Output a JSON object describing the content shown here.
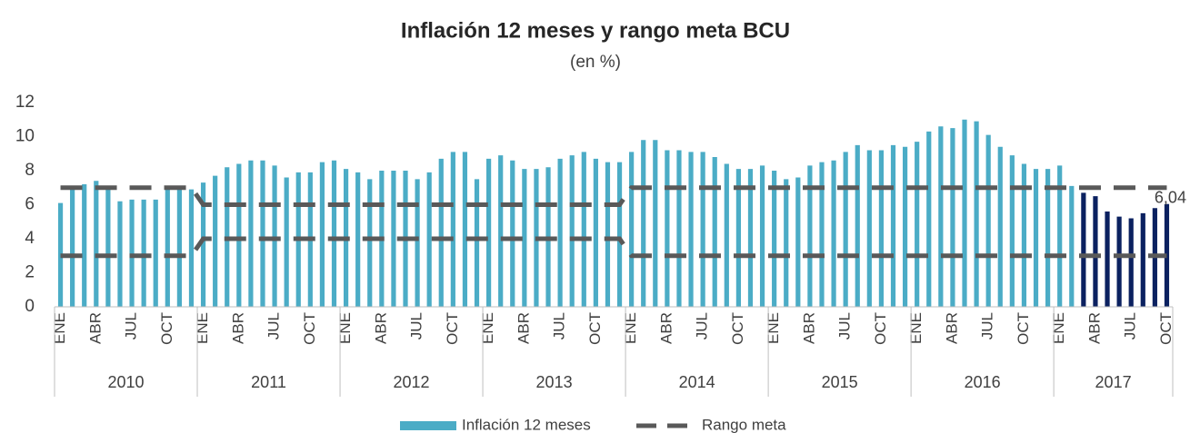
{
  "chart_data": {
    "type": "bar",
    "title": "Inflación 12 meses y rango meta BCU",
    "subtitle": "(en %)",
    "categories": [
      "ENE",
      null,
      null,
      "ABR",
      null,
      null,
      "JUL",
      null,
      null,
      "OCT",
      null,
      null,
      "ENE",
      null,
      null,
      "ABR",
      null,
      null,
      "JUL",
      null,
      null,
      "OCT",
      null,
      null,
      "ENE",
      null,
      null,
      "ABR",
      null,
      null,
      "JUL",
      null,
      null,
      "OCT",
      null,
      null,
      "ENE",
      null,
      null,
      "ABR",
      null,
      null,
      "JUL",
      null,
      null,
      "OCT",
      null,
      null,
      "ENE",
      null,
      null,
      "ABR",
      null,
      null,
      "JUL",
      null,
      null,
      "OCT",
      null,
      null,
      "ENE",
      null,
      null,
      "ABR",
      null,
      null,
      "JUL",
      null,
      null,
      "OCT",
      null,
      null,
      "ENE",
      null,
      null,
      "ABR",
      null,
      null,
      "JUL",
      null,
      null,
      "OCT",
      null,
      null,
      "ENE",
      null,
      null,
      "ABR",
      null,
      null,
      "JUL",
      null,
      null,
      "OCT"
    ],
    "years": [
      "2010",
      "2011",
      "2012",
      "2013",
      "2014",
      "2015",
      "2016",
      "2017"
    ],
    "series": [
      {
        "name": "Inflación 12 meses",
        "color": "#4bacc6",
        "values": [
          6.1,
          7.1,
          7.2,
          7.4,
          7.0,
          6.2,
          6.3,
          6.3,
          6.3,
          7.0,
          7.0,
          6.9,
          7.3,
          7.7,
          8.2,
          8.4,
          8.6,
          8.6,
          8.3,
          7.6,
          7.9,
          7.9,
          8.5,
          8.6,
          8.1,
          7.9,
          7.5,
          8.0,
          8.0,
          8.0,
          7.5,
          7.9,
          8.7,
          9.1,
          9.1,
          7.5,
          8.7,
          8.9,
          8.6,
          8.1,
          8.1,
          8.2,
          8.7,
          8.9,
          9.1,
          8.7,
          8.5,
          8.5,
          9.1,
          9.8,
          9.8,
          9.2,
          9.2,
          9.1,
          9.1,
          8.8,
          8.4,
          8.1,
          8.1,
          8.3,
          8.0,
          7.5,
          7.6,
          8.3,
          8.5,
          8.6,
          9.1,
          9.5,
          9.2,
          9.2,
          9.5,
          9.4,
          9.7,
          10.3,
          10.6,
          10.5,
          11.0,
          10.9,
          10.1,
          9.4,
          8.9,
          8.4,
          8.1,
          8.1,
          8.3,
          7.1,
          6.7,
          6.5,
          5.6,
          5.3,
          5.2,
          5.5,
          5.8,
          6.04
        ],
        "bar_colors": [
          "#4bacc6",
          "#4bacc6",
          "#4bacc6",
          "#4bacc6",
          "#4bacc6",
          "#4bacc6",
          "#4bacc6",
          "#4bacc6",
          "#4bacc6",
          "#4bacc6",
          "#4bacc6",
          "#4bacc6",
          "#4bacc6",
          "#4bacc6",
          "#4bacc6",
          "#4bacc6",
          "#4bacc6",
          "#4bacc6",
          "#4bacc6",
          "#4bacc6",
          "#4bacc6",
          "#4bacc6",
          "#4bacc6",
          "#4bacc6",
          "#4bacc6",
          "#4bacc6",
          "#4bacc6",
          "#4bacc6",
          "#4bacc6",
          "#4bacc6",
          "#4bacc6",
          "#4bacc6",
          "#4bacc6",
          "#4bacc6",
          "#4bacc6",
          "#4bacc6",
          "#4bacc6",
          "#4bacc6",
          "#4bacc6",
          "#4bacc6",
          "#4bacc6",
          "#4bacc6",
          "#4bacc6",
          "#4bacc6",
          "#4bacc6",
          "#4bacc6",
          "#4bacc6",
          "#4bacc6",
          "#4bacc6",
          "#4bacc6",
          "#4bacc6",
          "#4bacc6",
          "#4bacc6",
          "#4bacc6",
          "#4bacc6",
          "#4bacc6",
          "#4bacc6",
          "#4bacc6",
          "#4bacc6",
          "#4bacc6",
          "#4bacc6",
          "#4bacc6",
          "#4bacc6",
          "#4bacc6",
          "#4bacc6",
          "#4bacc6",
          "#4bacc6",
          "#4bacc6",
          "#4bacc6",
          "#4bacc6",
          "#4bacc6",
          "#4bacc6",
          "#4bacc6",
          "#4bacc6",
          "#4bacc6",
          "#4bacc6",
          "#4bacc6",
          "#4bacc6",
          "#4bacc6",
          "#4bacc6",
          "#4bacc6",
          "#4bacc6",
          "#4bacc6",
          "#4bacc6",
          "#4bacc6",
          "#4bacc6",
          "#0b2160",
          "#0b2160",
          "#0b2160",
          "#0b2160",
          "#0b2160",
          "#0b2160",
          "#0b2160",
          "#0b2160"
        ],
        "value_labels": [
          null,
          null,
          null,
          null,
          null,
          null,
          null,
          null,
          null,
          null,
          null,
          null,
          null,
          null,
          null,
          null,
          null,
          null,
          null,
          null,
          null,
          null,
          null,
          null,
          null,
          null,
          null,
          null,
          null,
          null,
          null,
          null,
          null,
          null,
          null,
          null,
          null,
          null,
          null,
          null,
          null,
          null,
          null,
          null,
          null,
          null,
          null,
          null,
          null,
          null,
          null,
          null,
          null,
          null,
          null,
          null,
          null,
          null,
          null,
          null,
          null,
          null,
          null,
          null,
          null,
          null,
          null,
          null,
          null,
          null,
          null,
          null,
          null,
          null,
          null,
          null,
          null,
          null,
          null,
          null,
          null,
          null,
          null,
          null,
          null,
          null,
          null,
          null,
          null,
          null,
          null,
          null,
          null,
          "6,04"
        ]
      }
    ],
    "range": {
      "name": "Rango meta",
      "color": "#595959",
      "lower": [
        3,
        3,
        3,
        3,
        3,
        3,
        3,
        3,
        3,
        3,
        3,
        3,
        4,
        4,
        4,
        4,
        4,
        4,
        4,
        4,
        4,
        4,
        4,
        4,
        4,
        4,
        4,
        4,
        4,
        4,
        4,
        4,
        4,
        4,
        4,
        4,
        4,
        4,
        4,
        4,
        4,
        4,
        4,
        4,
        4,
        4,
        4,
        4,
        3,
        3,
        3,
        3,
        3,
        3,
        3,
        3,
        3,
        3,
        3,
        3,
        3,
        3,
        3,
        3,
        3,
        3,
        3,
        3,
        3,
        3,
        3,
        3,
        3,
        3,
        3,
        3,
        3,
        3,
        3,
        3,
        3,
        3,
        3,
        3,
        3,
        3,
        3,
        3,
        3,
        3,
        3,
        3,
        3,
        3
      ],
      "upper": [
        7,
        7,
        7,
        7,
        7,
        7,
        7,
        7,
        7,
        7,
        7,
        7,
        6,
        6,
        6,
        6,
        6,
        6,
        6,
        6,
        6,
        6,
        6,
        6,
        6,
        6,
        6,
        6,
        6,
        6,
        6,
        6,
        6,
        6,
        6,
        6,
        6,
        6,
        6,
        6,
        6,
        6,
        6,
        6,
        6,
        6,
        6,
        6,
        7,
        7,
        7,
        7,
        7,
        7,
        7,
        7,
        7,
        7,
        7,
        7,
        7,
        7,
        7,
        7,
        7,
        7,
        7,
        7,
        7,
        7,
        7,
        7,
        7,
        7,
        7,
        7,
        7,
        7,
        7,
        7,
        7,
        7,
        7,
        7,
        7,
        7,
        7,
        7,
        7,
        7,
        7,
        7,
        7,
        7
      ]
    },
    "ylim": [
      0,
      12
    ],
    "yticks": [
      0,
      2,
      4,
      6,
      8,
      10,
      12
    ],
    "grid": false
  }
}
